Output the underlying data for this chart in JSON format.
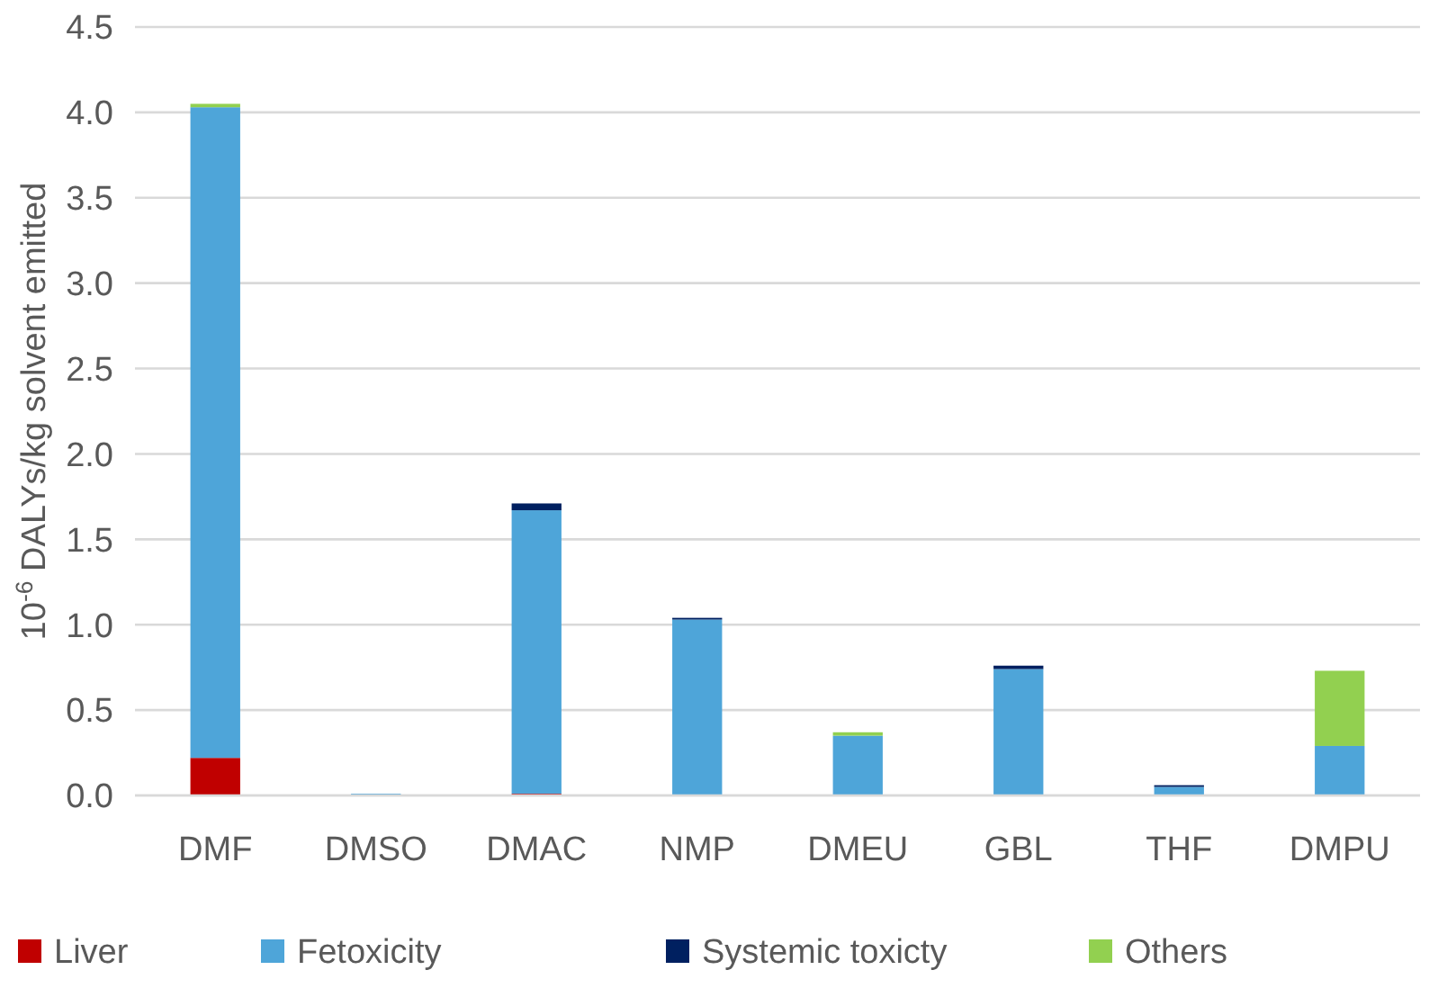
{
  "chart_data": {
    "type": "bar",
    "stacked": true,
    "ylabel": "10$^{-6}$ DALYs/kg solvent emitted",
    "categories": [
      "DMF",
      "DMSO",
      "DMAC",
      "NMP",
      "DMEU",
      "GBL",
      "THF",
      "DMPU"
    ],
    "series": [
      {
        "name": "Liver",
        "color": "#c00000",
        "values": [
          0.22,
          0,
          0.01,
          0,
          0,
          0,
          0,
          0
        ]
      },
      {
        "name": "Fetoxicity",
        "color": "#4ea5d9",
        "values": [
          3.81,
          0.01,
          1.66,
          1.03,
          0.35,
          0.74,
          0.05,
          0.29
        ]
      },
      {
        "name": "Systemic toxicty",
        "color": "#002060",
        "values": [
          0,
          0,
          0.04,
          0.01,
          0,
          0.02,
          0.01,
          0
        ]
      },
      {
        "name": "Others",
        "color": "#92d050",
        "values": [
          0.02,
          0,
          0,
          0,
          0.02,
          0,
          0,
          0.44
        ]
      }
    ],
    "ylim": [
      0,
      4.5
    ],
    "yticks": [
      {
        "value": 0,
        "label": "0.0"
      },
      {
        "value": 0.5,
        "label": "0.5"
      },
      {
        "value": 1,
        "label": "1.0"
      },
      {
        "value": 1.5,
        "label": "1.5"
      },
      {
        "value": 2,
        "label": "2.0"
      },
      {
        "value": 2.5,
        "label": "2.5"
      },
      {
        "value": 3,
        "label": "3.0"
      },
      {
        "value": 3.5,
        "label": "3.5"
      },
      {
        "value": 4,
        "label": "4.0"
      },
      {
        "value": 4.5,
        "label": "4.5"
      }
    ],
    "grid": "y",
    "legend": "bottom"
  }
}
